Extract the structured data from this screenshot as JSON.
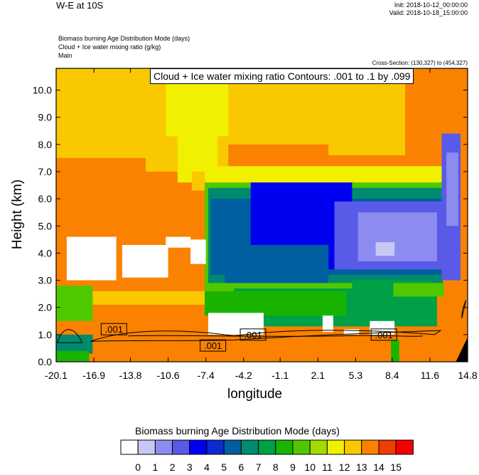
{
  "header": {
    "title": "W-E at 10S",
    "init": "Init: 2018-10-12_00:00:00",
    "valid": "Valid: 2018-10-18_15:00:00",
    "subtitle_lines": [
      "Biomass burning Age Distribution Mode   (days)",
      "Cloud + Ice water mixing ratio   (g/kg)",
      "Main"
    ],
    "cross_section": "Cross-Section: (130,327) to (454,327)",
    "contour_info": "Cloud + Ice water mixing ratio Contours: .001 to .1 by .099"
  },
  "chart_data": {
    "type": "heatmap",
    "xlabel": "longitude",
    "ylabel": "Height (km)",
    "x_ticks": [
      "-20.1",
      "-16.9",
      "-13.8",
      "-10.6",
      "-7.4",
      "-4.2",
      "-1.1",
      "2.1",
      "5.3",
      "8.4",
      "11.6",
      "14.8"
    ],
    "y_ticks": [
      "0.0",
      "1.0",
      "2.0",
      "3.0",
      "4.0",
      "5.0",
      "6.0",
      "7.0",
      "8.0",
      "9.0",
      "10.0"
    ],
    "xlim": [
      -20.1,
      14.8
    ],
    "ylim": [
      0,
      10.8
    ],
    "contour_labels": [
      ".001",
      ".001",
      ".001",
      ".001"
    ],
    "colorbar": {
      "title": "Biomass burning Age Distribution Mode  (days)",
      "labels": [
        "0",
        "1",
        "2",
        "3",
        "4",
        "5",
        "6",
        "7",
        "8",
        "9",
        "10",
        "11",
        "12",
        "13",
        "14",
        "15"
      ],
      "colors": [
        "#ffffff",
        "#c8c8f5",
        "#8c8cf0",
        "#5a5ae8",
        "#0000f0",
        "#0a2ad2",
        "#005fa0",
        "#008a6e",
        "#00a046",
        "#19b400",
        "#50c800",
        "#a0dc00",
        "#f0f000",
        "#fac800",
        "#fa8200",
        "#f03c00",
        "#f50000"
      ]
    }
  }
}
